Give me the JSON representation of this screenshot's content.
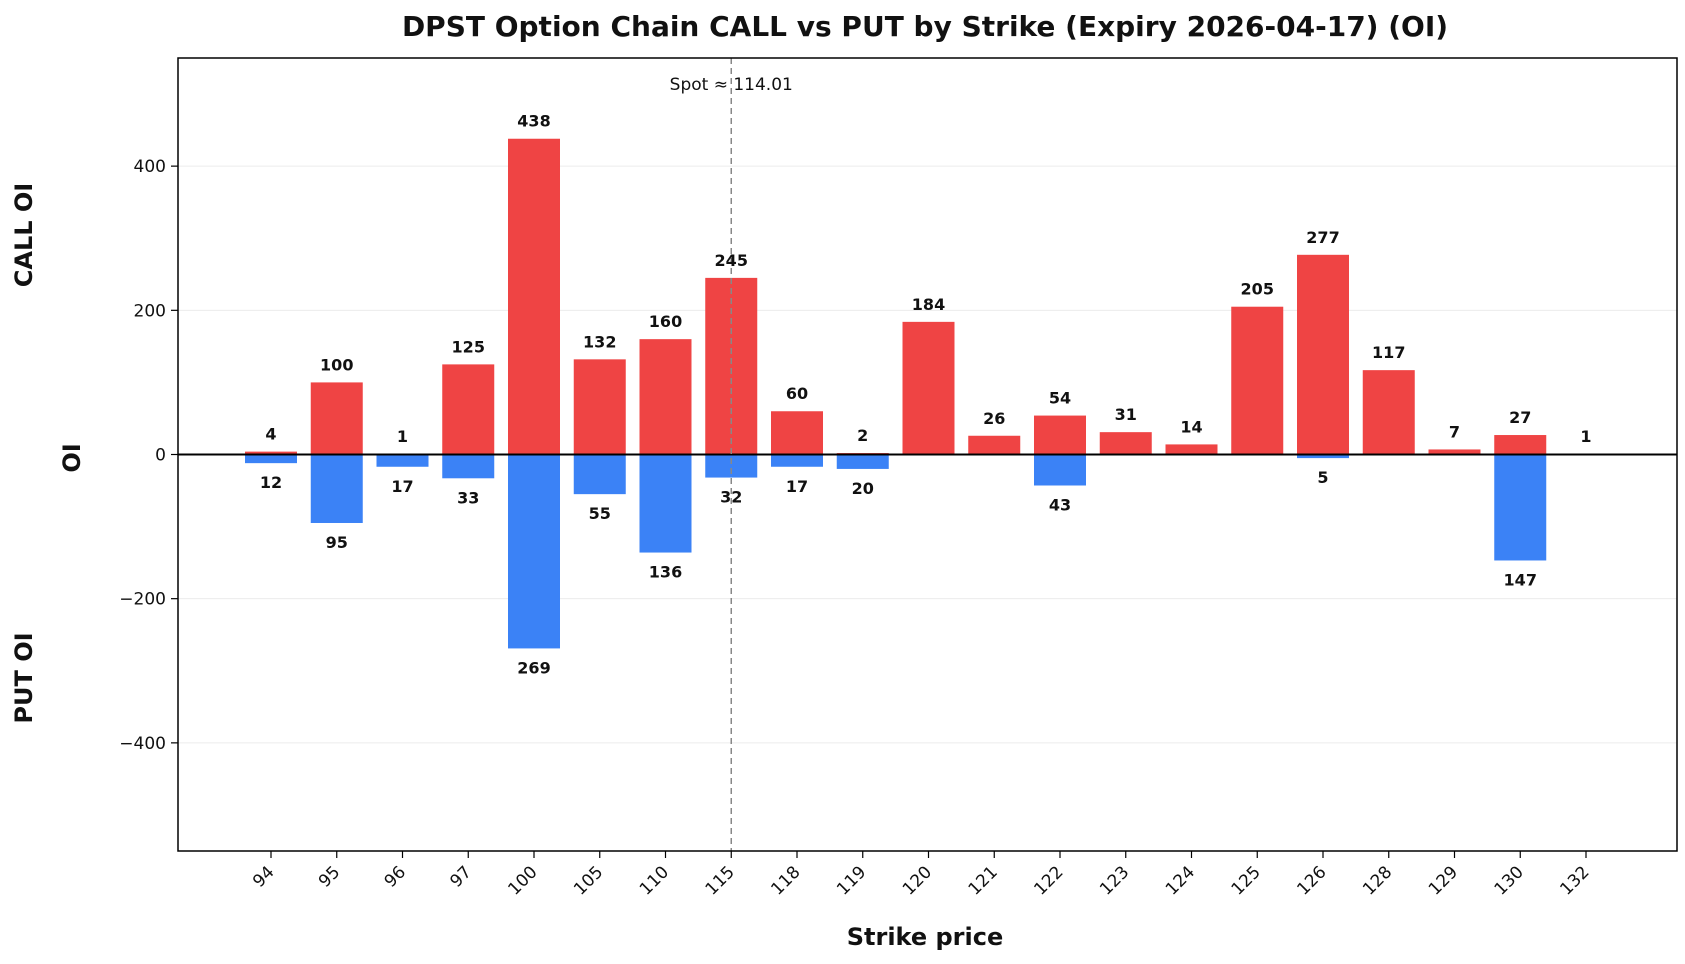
{
  "chart_data": {
    "type": "bar",
    "title": "DPST Option Chain CALL vs PUT by Strike (Expiry 2026-04-17) (OI)",
    "xlabel": "Strike price",
    "ylabel": "OI",
    "ylabel_top": "CALL OI",
    "ylabel_bottom": "PUT OI",
    "ylim": [
      -550,
      550
    ],
    "yticks": [
      -400,
      -200,
      0,
      200,
      400
    ],
    "ytick_labels": [
      "−400",
      "−200",
      "0",
      "200",
      "400"
    ],
    "grid": true,
    "categories": [
      "94",
      "95",
      "96",
      "97",
      "100",
      "105",
      "110",
      "115",
      "118",
      "119",
      "120",
      "121",
      "122",
      "123",
      "124",
      "125",
      "126",
      "128",
      "129",
      "130",
      "132"
    ],
    "series": [
      {
        "name": "CALL OI",
        "color": "#ef4444",
        "values": [
          4,
          100,
          1,
          125,
          438,
          132,
          160,
          245,
          60,
          2,
          184,
          26,
          54,
          31,
          14,
          205,
          277,
          117,
          7,
          27,
          1
        ]
      },
      {
        "name": "PUT OI",
        "color": "#3b82f6",
        "values": [
          12,
          95,
          17,
          33,
          269,
          55,
          136,
          32,
          17,
          20,
          0,
          0,
          43,
          0,
          0,
          0,
          5,
          0,
          0,
          147,
          0
        ]
      }
    ],
    "spot": {
      "label": "Spot ≈ 114.01",
      "category_position": 7
    }
  }
}
